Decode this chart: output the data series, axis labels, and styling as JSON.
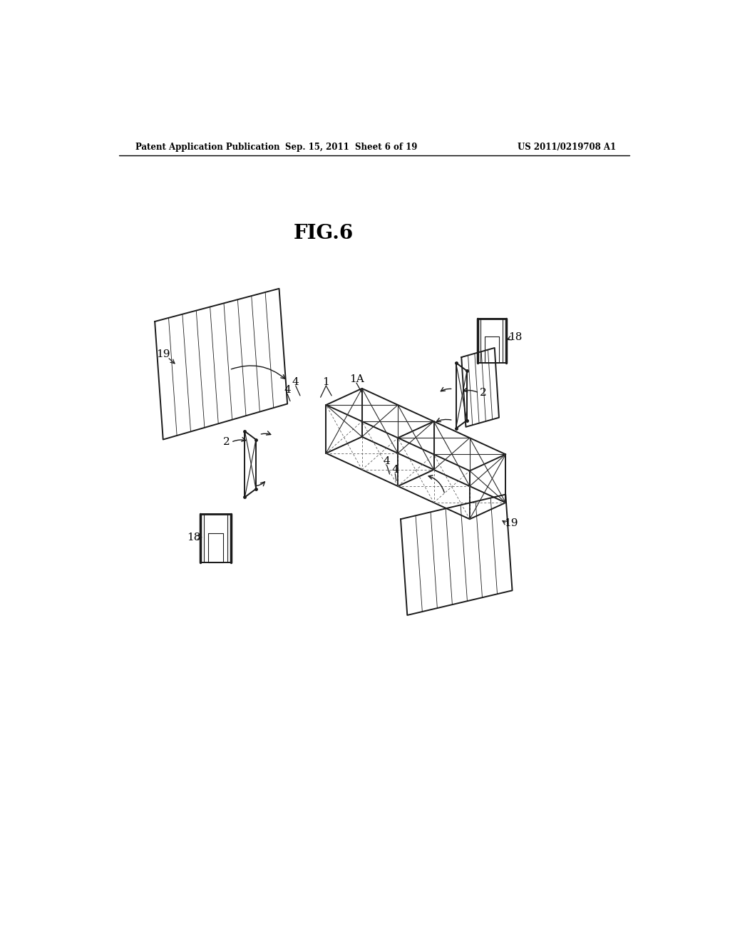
{
  "background_color": "#ffffff",
  "line_color": "#1a1a1a",
  "header_left": "Patent Application Publication",
  "header_center": "Sep. 15, 2011  Sheet 6 of 19",
  "header_right": "US 2011/0219708 A1",
  "figure_label": "FIG.6",
  "lw_main": 1.4,
  "lw_thin": 0.8,
  "lw_thick": 2.0
}
